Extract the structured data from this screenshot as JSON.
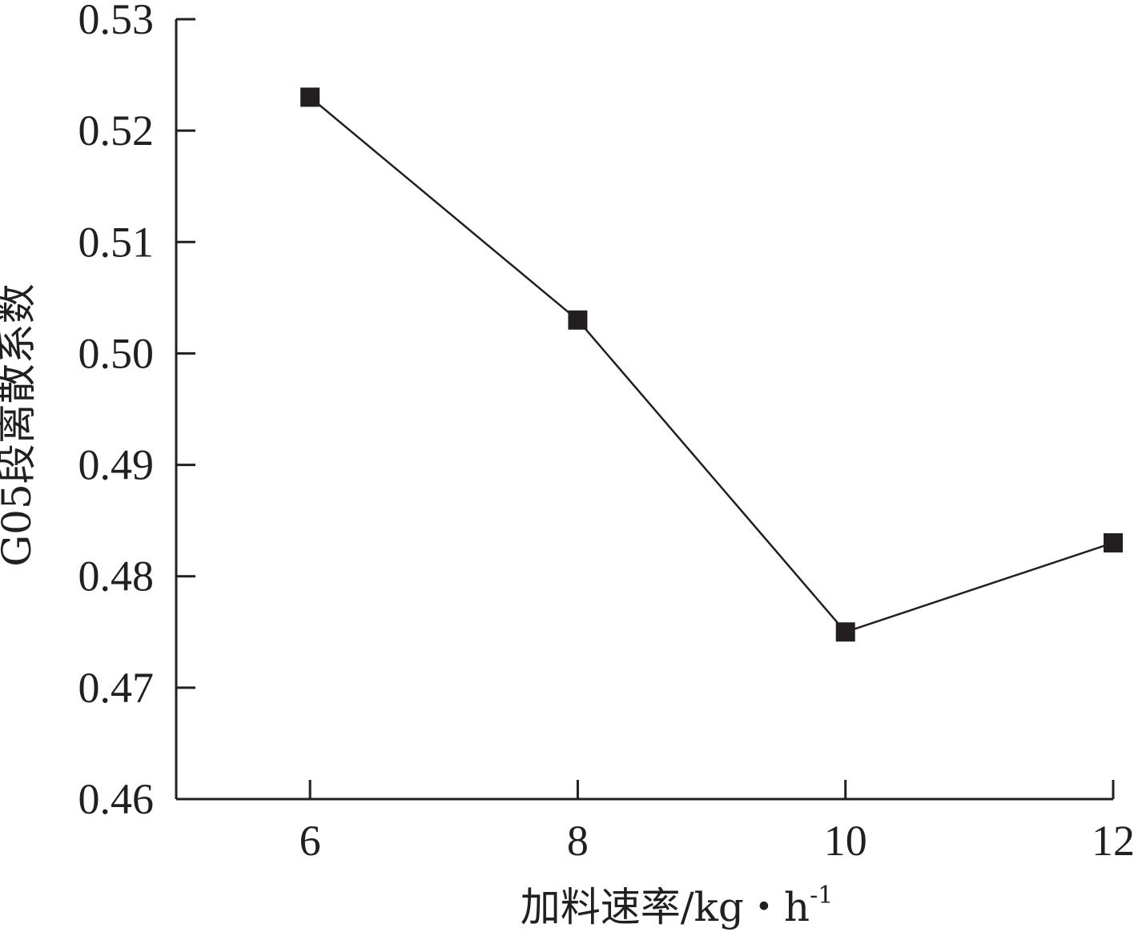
{
  "chart_data": {
    "type": "line",
    "title": "",
    "xlabel": "加料速率/kg・h",
    "xlabel_superscript": "-1",
    "ylabel": "G05段离散系数",
    "x": [
      6,
      8,
      10,
      12
    ],
    "series": [
      {
        "values": [
          0.523,
          0.503,
          0.475,
          0.483
        ],
        "marker": "square",
        "color": "#231f20"
      }
    ],
    "xlim": [
      5,
      12
    ],
    "ylim": [
      0.46,
      0.53
    ],
    "xticks": [
      "6",
      "8",
      "10",
      "12"
    ],
    "yticks": [
      "0.46",
      "0.47",
      "0.48",
      "0.49",
      "0.50",
      "0.51",
      "0.52",
      "0.53"
    ],
    "grid": false,
    "legend": "none"
  }
}
